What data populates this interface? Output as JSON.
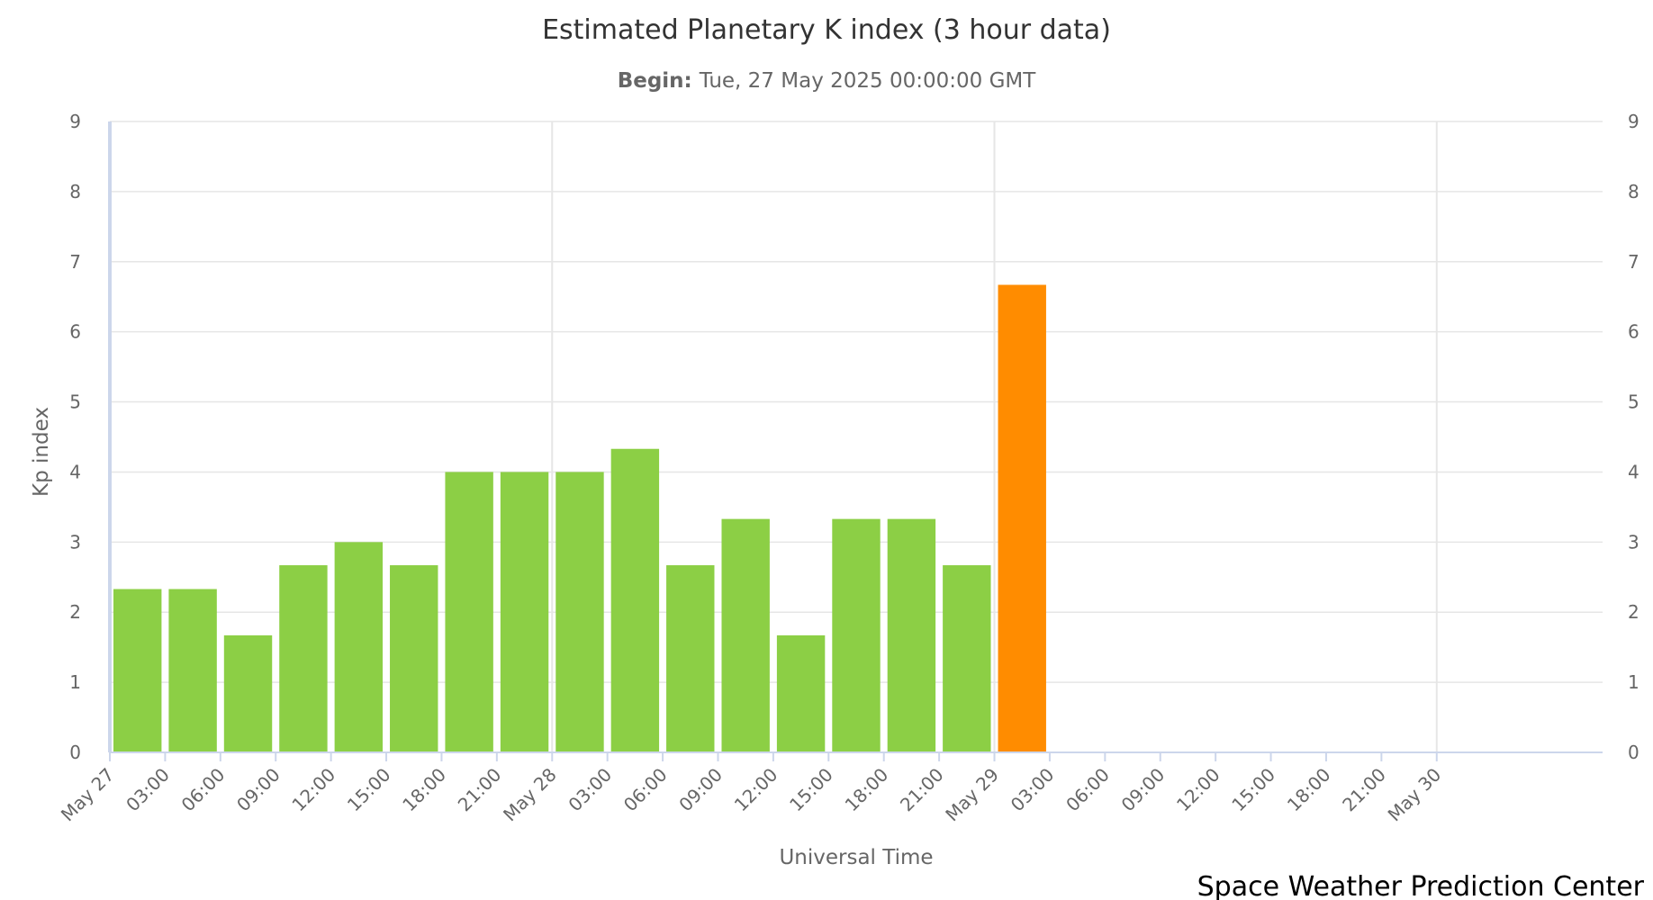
{
  "chart_data": {
    "type": "bar",
    "title": "Estimated Planetary K index (3 hour data)",
    "subtitle": {
      "label": "Begin:",
      "value": "Tue, 27 May 2025 00:00:00 GMT"
    },
    "xlabel": "Universal Time",
    "ylabel": "Kp index",
    "ylim": [
      0,
      9
    ],
    "yticks": [
      0,
      1,
      2,
      3,
      4,
      5,
      6,
      7,
      8,
      9
    ],
    "right_axis_ticks": [
      0,
      1,
      2,
      3,
      4,
      5,
      6,
      7,
      8,
      9
    ],
    "xlim": [
      "2025-05-27 00:00",
      "2025-05-30 09:00"
    ],
    "xtick_labels": [
      "May 27",
      "03:00",
      "06:00",
      "09:00",
      "12:00",
      "15:00",
      "18:00",
      "21:00",
      "May 28",
      "03:00",
      "06:00",
      "09:00",
      "12:00",
      "15:00",
      "18:00",
      "21:00",
      "May 29",
      "03:00",
      "06:00",
      "09:00",
      "12:00",
      "15:00",
      "18:00",
      "21:00",
      "May 30"
    ],
    "bars": [
      {
        "start": "2025-05-27 00:00",
        "value": 2.33,
        "color": "#8ccf45"
      },
      {
        "start": "2025-05-27 03:00",
        "value": 2.33,
        "color": "#8ccf45"
      },
      {
        "start": "2025-05-27 06:00",
        "value": 1.67,
        "color": "#8ccf45"
      },
      {
        "start": "2025-05-27 09:00",
        "value": 2.67,
        "color": "#8ccf45"
      },
      {
        "start": "2025-05-27 12:00",
        "value": 3.0,
        "color": "#8ccf45"
      },
      {
        "start": "2025-05-27 15:00",
        "value": 2.67,
        "color": "#8ccf45"
      },
      {
        "start": "2025-05-27 18:00",
        "value": 4.0,
        "color": "#8ccf45"
      },
      {
        "start": "2025-05-27 21:00",
        "value": 4.0,
        "color": "#8ccf45"
      },
      {
        "start": "2025-05-28 00:00",
        "value": 4.0,
        "color": "#8ccf45"
      },
      {
        "start": "2025-05-28 03:00",
        "value": 4.33,
        "color": "#8ccf45"
      },
      {
        "start": "2025-05-28 06:00",
        "value": 2.67,
        "color": "#8ccf45"
      },
      {
        "start": "2025-05-28 09:00",
        "value": 3.33,
        "color": "#8ccf45"
      },
      {
        "start": "2025-05-28 12:00",
        "value": 1.67,
        "color": "#8ccf45"
      },
      {
        "start": "2025-05-28 15:00",
        "value": 3.33,
        "color": "#8ccf45"
      },
      {
        "start": "2025-05-28 18:00",
        "value": 3.33,
        "color": "#8ccf45"
      },
      {
        "start": "2025-05-28 21:00",
        "value": 2.67,
        "color": "#8ccf45"
      },
      {
        "start": "2025-05-29 00:00",
        "value": 6.67,
        "color": "#ff8c00"
      }
    ],
    "grid": true
  },
  "credit": "Space Weather Prediction Center",
  "colors": {
    "quiet": "#8ccf45",
    "storm": "#ff8c00",
    "grid": "#e6e6e6",
    "axis": "#ccd6eb"
  }
}
